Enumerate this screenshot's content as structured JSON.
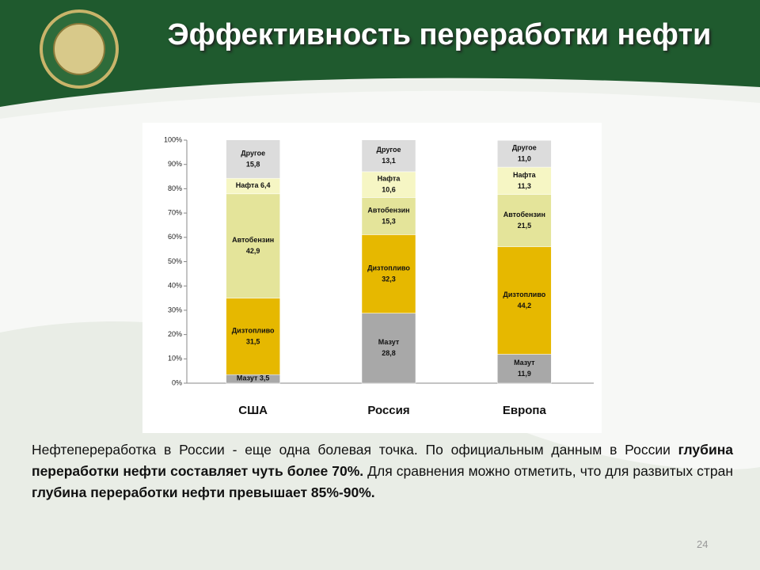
{
  "slide": {
    "title": "Эффективность переработки нефти",
    "paragraph": [
      {
        "text": "Нефтепереработка в России - еще одна болевая точка. По официальным данным в России ",
        "bold": false
      },
      {
        "text": "глубина переработки нефти составляет чуть более 70%.",
        "bold": true
      },
      {
        "text": " Для сравнения можно отметить, что для развитых стран ",
        "bold": false
      },
      {
        "text": "глубина переработки нефти превышает 85%-90%.",
        "bold": true
      }
    ],
    "page_number": "24"
  },
  "chart_data": {
    "type": "stacked_bar",
    "categories": [
      "США",
      "Россия",
      "Европа"
    ],
    "series": [
      {
        "name": "Мазут",
        "color": "#a8a8a8",
        "values": [
          3.5,
          28.8,
          11.9
        ],
        "value_labels": [
          "3,5",
          "28,8",
          "11,9"
        ]
      },
      {
        "name": "Дизтопливо",
        "color": "#e6b800",
        "values": [
          31.5,
          32.3,
          44.2
        ],
        "value_labels": [
          "31,5",
          "32,3",
          "44,2"
        ]
      },
      {
        "name": "Автобензин",
        "color": "#e4e49a",
        "values": [
          42.9,
          15.3,
          21.5
        ],
        "value_labels": [
          "42,9",
          "15,3",
          "21,5"
        ]
      },
      {
        "name": "Нафта",
        "color": "#f6f6c4",
        "values": [
          6.4,
          10.6,
          11.3
        ],
        "value_labels": [
          "6,4",
          "10,6",
          "11,3"
        ]
      },
      {
        "name": "Другое",
        "color": "#dcdcdc",
        "values": [
          15.8,
          13.1,
          11.0
        ],
        "value_labels": [
          "15,8",
          "13,1",
          "11,0"
        ]
      }
    ],
    "ylim": [
      0,
      100
    ],
    "yticks": [
      {
        "value": 0,
        "label": "0%"
      },
      {
        "value": 10,
        "label": "10%"
      },
      {
        "value": 20,
        "label": "20%"
      },
      {
        "value": 30,
        "label": "30%"
      },
      {
        "value": 40,
        "label": "40%"
      },
      {
        "value": 50,
        "label": "50%"
      },
      {
        "value": 60,
        "label": "60%"
      },
      {
        "value": 70,
        "label": "70%"
      },
      {
        "value": 80,
        "label": "80%"
      },
      {
        "value": 90,
        "label": "90%"
      },
      {
        "value": 100,
        "label": "100%"
      }
    ]
  }
}
